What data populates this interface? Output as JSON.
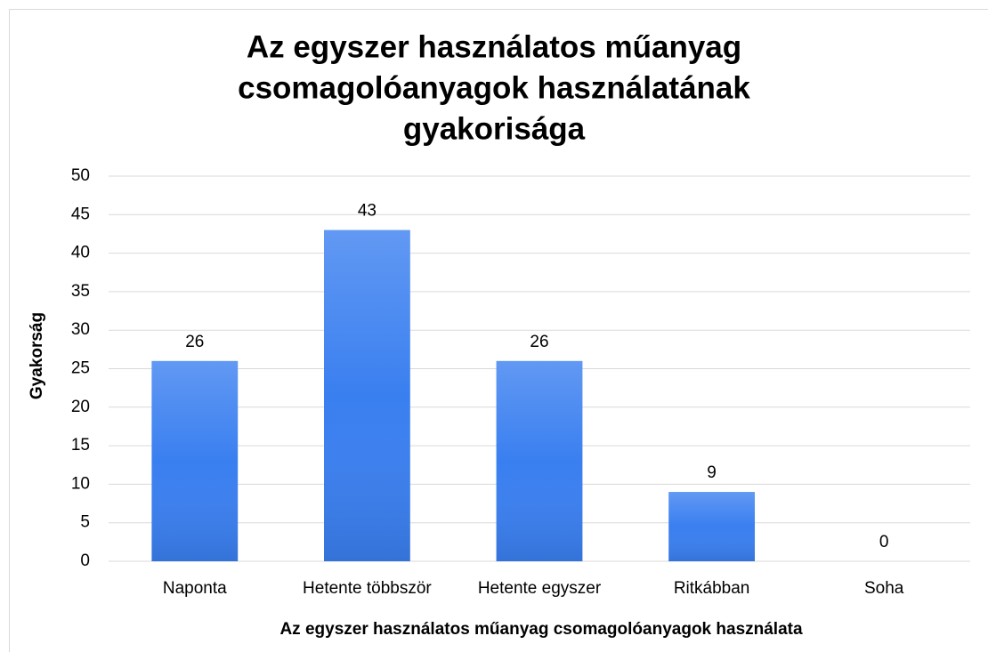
{
  "chart_data": {
    "type": "bar",
    "title": [
      "Az egyszer használatos műanyag",
      "csomagolóanyagok használatának",
      "gyakorisága"
    ],
    "x_label": "Az egyszer használatos műanyag csomagolóanyagok használata",
    "y_label": "Gyakorság",
    "categories": [
      "Naponta",
      "Hetente többször",
      "Hetente egyszer",
      "Ritkábban",
      "Soha"
    ],
    "values": [
      26,
      43,
      26,
      9,
      0
    ],
    "color": "#3a7ff0",
    "ylim": [
      0,
      50
    ],
    "yticks": [
      0,
      5,
      10,
      15,
      20,
      25,
      30,
      35,
      40,
      45,
      50
    ],
    "grid": true
  }
}
